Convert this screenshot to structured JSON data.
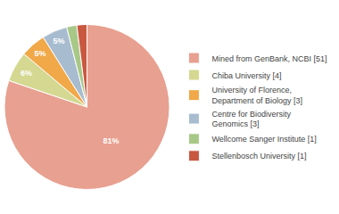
{
  "chart_data": {
    "type": "pie",
    "categories": [
      "Mined from GenBank, NCBI [51]",
      "Chiba University [4]",
      "University of Florence,\nDepartment of Biology [3]",
      "Centre for Biodiversity\nGenomics [3]",
      "Wellcome Sanger Institute [1]",
      "Stellenbosch University [1]"
    ],
    "values": [
      81,
      6,
      5,
      5,
      2,
      2
    ],
    "value_labels": [
      "81%",
      "6%",
      "5%",
      "5%",
      null,
      null
    ],
    "colors": [
      "#e8a090",
      "#d4d890",
      "#f0a848",
      "#a8bcd0",
      "#a8c888",
      "#c85840"
    ],
    "data_labels": true,
    "legend": "right"
  }
}
